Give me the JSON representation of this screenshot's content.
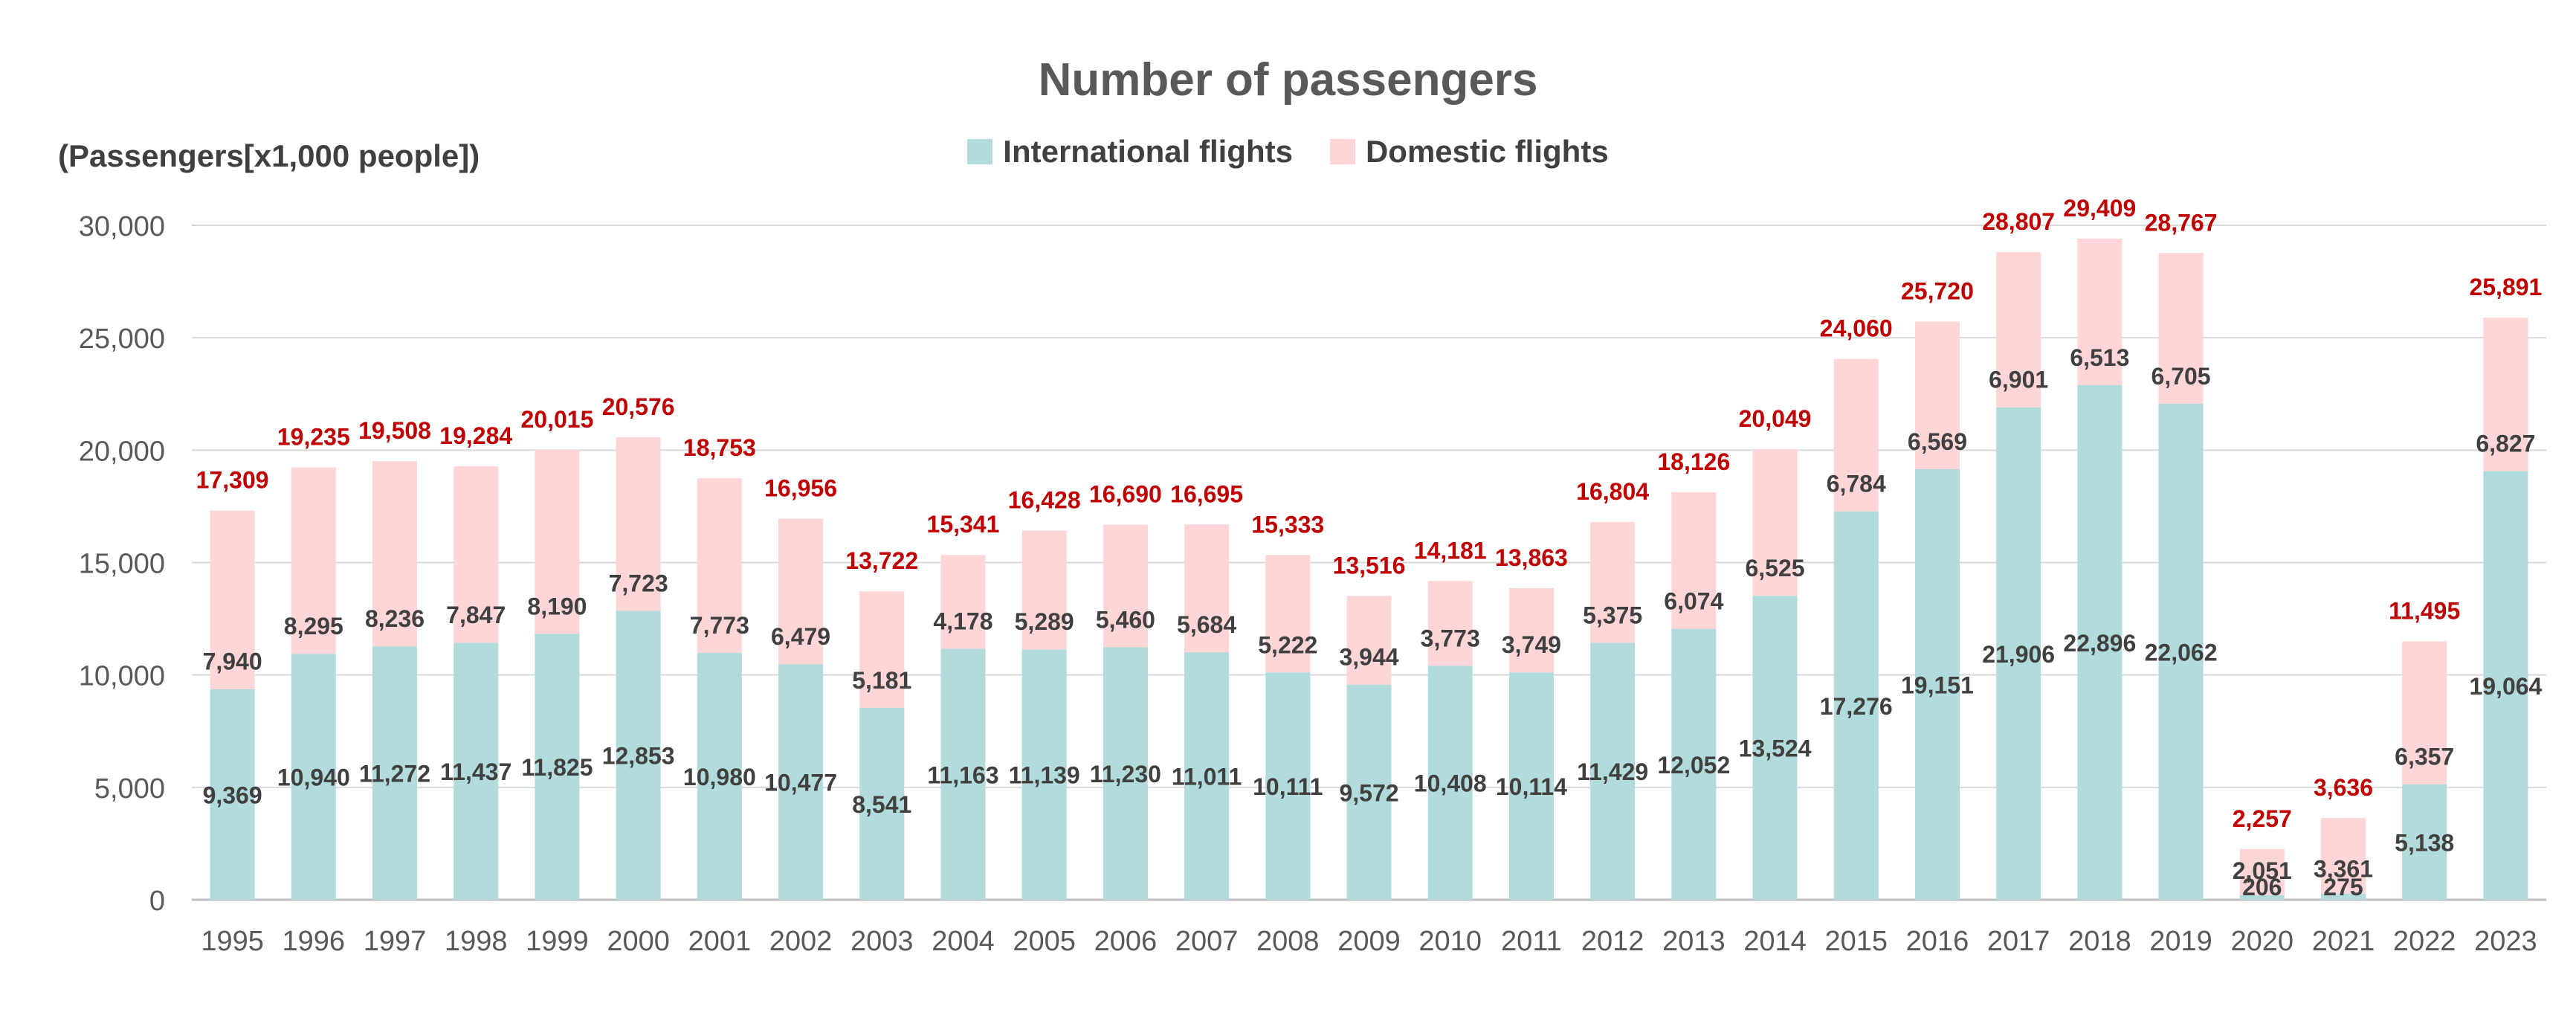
{
  "chart_data": {
    "type": "bar",
    "stacked": true,
    "title": "Number of passengers",
    "ylabel": "(Passengers[x1,000 people])",
    "xlabel": "",
    "ylim": [
      0,
      30000
    ],
    "yticks": [
      0,
      5000,
      10000,
      15000,
      20000,
      25000,
      30000
    ],
    "ytick_labels": [
      "0",
      "5,000",
      "10,000",
      "15,000",
      "20,000",
      "25,000",
      "30,000"
    ],
    "grid": true,
    "legend_position": "top-center",
    "categories": [
      "1995",
      "1996",
      "1997",
      "1998",
      "1999",
      "2000",
      "2001",
      "2002",
      "2003",
      "2004",
      "2005",
      "2006",
      "2007",
      "2008",
      "2009",
      "2010",
      "2011",
      "2012",
      "2013",
      "2014",
      "2015",
      "2016",
      "2017",
      "2018",
      "2019",
      "2020",
      "2021",
      "2022",
      "2023"
    ],
    "series": [
      {
        "name": "International flights",
        "color": "#b2dcdc",
        "values": [
          9369,
          10940,
          11272,
          11437,
          11825,
          12853,
          10980,
          10477,
          8541,
          11163,
          11139,
          11230,
          11011,
          10111,
          9572,
          10408,
          10114,
          11429,
          12052,
          13524,
          17276,
          19151,
          21906,
          22896,
          22062,
          206,
          275,
          5138,
          19064
        ],
        "labels": [
          "9,369",
          "10,940",
          "11,272",
          "11,437",
          "11,825",
          "12,853",
          "10,980",
          "10,477",
          "8,541",
          "11,163",
          "11,139",
          "11,230",
          "11,011",
          "10,111",
          "9,572",
          "10,408",
          "10,114",
          "11,429",
          "12,052",
          "13,524",
          "17,276",
          "19,151",
          "21,906",
          "22,896",
          "22,062",
          "206",
          "275",
          "5,138",
          "19,064"
        ]
      },
      {
        "name": "Domestic flights",
        "color": "#ffd6d8",
        "values": [
          7940,
          8295,
          8236,
          7847,
          8190,
          7723,
          7773,
          6479,
          5181,
          4178,
          5289,
          5460,
          5684,
          5222,
          3944,
          3773,
          3749,
          5375,
          6074,
          6525,
          6784,
          6569,
          6901,
          6513,
          6705,
          2051,
          3361,
          6357,
          6827
        ],
        "labels": [
          "7,940",
          "8,295",
          "8,236",
          "7,847",
          "8,190",
          "7,723",
          "7,773",
          "6,479",
          "5,181",
          "4,178",
          "5,289",
          "5,460",
          "5,684",
          "5,222",
          "3,944",
          "3,773",
          "3,749",
          "5,375",
          "6,074",
          "6,525",
          "6,784",
          "6,569",
          "6,901",
          "6,513",
          "6,705",
          "2,051",
          "3,361",
          "6,357",
          "6,827"
        ]
      }
    ],
    "totals": [
      17309,
      19235,
      19508,
      19284,
      20015,
      20576,
      18753,
      16956,
      13722,
      15341,
      16428,
      16690,
      16695,
      15333,
      13516,
      14181,
      13863,
      16804,
      18126,
      20049,
      24060,
      25720,
      28807,
      29409,
      28767,
      2257,
      3636,
      11495,
      25891
    ],
    "total_labels": [
      "17,309",
      "19,235",
      "19,508",
      "19,284",
      "20,015",
      "20,576",
      "18,753",
      "16,956",
      "13,722",
      "15,341",
      "16,428",
      "16,690",
      "16,695",
      "15,333",
      "13,516",
      "14,181",
      "13,863",
      "16,804",
      "18,126",
      "20,049",
      "24,060",
      "25,720",
      "28,807",
      "29,409",
      "28,767",
      "2,257",
      "3,636",
      "11,495",
      "25,891"
    ],
    "total_label_color": "#c00000",
    "value_label_color": "#404040"
  }
}
